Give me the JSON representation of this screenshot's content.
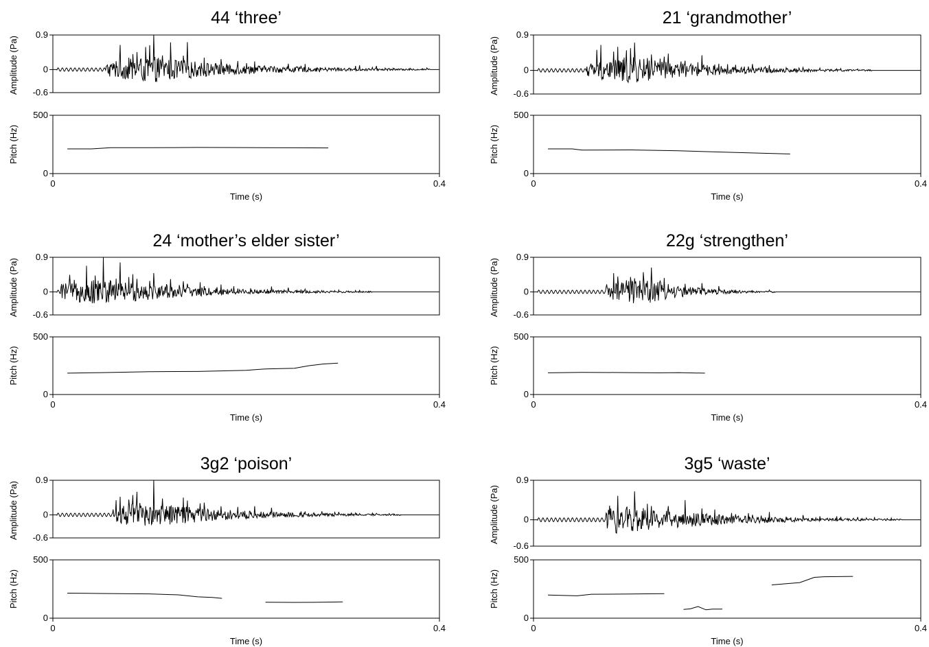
{
  "chart_data": [
    {
      "type": "line",
      "title": "44 ‘three’",
      "xlabel": "Time (s)",
      "xlim": [
        0,
        0.4
      ],
      "xticks": [
        "0",
        "0.4"
      ],
      "waveform": {
        "ylabel": "Amplitude (Pa)",
        "ylim": [
          -0.6,
          0.9
        ],
        "yticks": [
          "0.9",
          "0",
          "-0.6"
        ],
        "onset_s": 0.055,
        "peak_s": 0.1,
        "end_s": 0.39,
        "max_pa": 0.9,
        "min_pa": -0.6
      },
      "pitch": {
        "ylabel": "Pitch (Hz)",
        "ylim": [
          0,
          500
        ],
        "yticks": [
          "500",
          "0"
        ],
        "segments": [
          {
            "x": [
              0.015,
              0.04,
              0.06,
              0.1,
              0.15,
              0.2,
              0.25,
              0.285
            ],
            "y": [
              212,
              212,
              222,
              222,
              224,
              223,
              221,
              220
            ]
          }
        ]
      }
    },
    {
      "type": "line",
      "title": "21 ‘grandmother’",
      "xlabel": "Time (s)",
      "xlim": [
        0,
        0.4
      ],
      "xticks": [
        "0",
        "0.4"
      ],
      "waveform": {
        "ylabel": "Amplitude (Pa)",
        "ylim": [
          -0.6,
          0.9
        ],
        "yticks": [
          "0.9",
          "0",
          "-0.6"
        ],
        "onset_s": 0.055,
        "peak_s": 0.1,
        "end_s": 0.35,
        "max_pa": 0.9,
        "min_pa": -0.6
      },
      "pitch": {
        "ylabel": "Pitch (Hz)",
        "ylim": [
          0,
          500
        ],
        "yticks": [
          "500",
          "0"
        ],
        "segments": [
          {
            "x": [
              0.015,
              0.04,
              0.05,
              0.1,
              0.15,
              0.2,
              0.265
            ],
            "y": [
              212,
              212,
              202,
              203,
              195,
              183,
              168
            ]
          }
        ]
      }
    },
    {
      "type": "line",
      "title": "24 ‘mother’s elder sister’",
      "xlabel": "Time (s)",
      "xlim": [
        0,
        0.4
      ],
      "xticks": [
        "0",
        "0.4"
      ],
      "waveform": {
        "ylabel": "Amplitude (Pa)",
        "ylim": [
          -0.6,
          0.9
        ],
        "yticks": [
          "0.9",
          "0",
          "-0.6"
        ],
        "onset_s": 0.008,
        "peak_s": 0.05,
        "end_s": 0.33,
        "max_pa": 0.9,
        "min_pa": -0.6
      },
      "pitch": {
        "ylabel": "Pitch (Hz)",
        "ylim": [
          0,
          500
        ],
        "yticks": [
          "500",
          "0"
        ],
        "segments": [
          {
            "x": [
              0.015,
              0.05,
              0.1,
              0.15,
              0.2,
              0.22,
              0.25,
              0.265,
              0.28,
              0.295
            ],
            "y": [
              185,
              190,
              198,
              200,
              210,
              222,
              228,
              250,
              265,
              272
            ]
          }
        ]
      }
    },
    {
      "type": "line",
      "title": "22g ‘strengthen’",
      "xlabel": "Time (s)",
      "xlim": [
        0,
        0.4
      ],
      "xticks": [
        "0",
        "0.4"
      ],
      "waveform": {
        "ylabel": "Amplitude (Pa)",
        "ylim": [
          -0.6,
          0.9
        ],
        "yticks": [
          "0.9",
          "0",
          "-0.6"
        ],
        "onset_s": 0.075,
        "peak_s": 0.115,
        "end_s": 0.25,
        "max_pa": 0.9,
        "min_pa": -0.6
      },
      "pitch": {
        "ylabel": "Pitch (Hz)",
        "ylim": [
          0,
          500
        ],
        "yticks": [
          "500",
          "0"
        ],
        "segments": [
          {
            "x": [
              0.015,
              0.05,
              0.1,
              0.13,
              0.15,
              0.177
            ],
            "y": [
              188,
              192,
              190,
              188,
              190,
              185
            ]
          }
        ]
      }
    },
    {
      "type": "line",
      "title": "3g2 ‘poison’",
      "xlabel": "Time (s)",
      "xlim": [
        0,
        0.4
      ],
      "xticks": [
        "0",
        "0.4"
      ],
      "waveform": {
        "ylabel": "Amplitude (Pa)",
        "ylim": [
          -0.6,
          0.9
        ],
        "yticks": [
          "0.9",
          "0",
          "-0.6"
        ],
        "onset_s": 0.062,
        "peak_s": 0.095,
        "end_s": 0.36,
        "max_pa": 0.9,
        "min_pa": -0.6
      },
      "pitch": {
        "ylabel": "Pitch (Hz)",
        "ylim": [
          0,
          500
        ],
        "yticks": [
          "500",
          "0"
        ],
        "segments": [
          {
            "x": [
              0.015,
              0.05,
              0.1,
              0.13,
              0.15,
              0.165,
              0.175
            ],
            "y": [
              215,
              212,
              208,
              200,
              183,
              178,
              170
            ]
          },
          {
            "x": [
              0.22,
              0.25,
              0.27,
              0.3
            ],
            "y": [
              137,
              135,
              136,
              140
            ]
          }
        ]
      }
    },
    {
      "type": "line",
      "title": "3g5 ‘waste’",
      "xlabel": "Time (s)",
      "xlim": [
        0,
        0.4
      ],
      "xticks": [
        "0",
        "0.4"
      ],
      "waveform": {
        "ylabel": "Amplitude (Pa)",
        "ylim": [
          -0.6,
          0.9
        ],
        "yticks": [
          "0.9",
          "0",
          "-0.6"
        ],
        "onset_s": 0.075,
        "peak_s": 0.085,
        "end_s": 0.38,
        "max_pa": 0.9,
        "min_pa": -0.6
      },
      "pitch": {
        "ylabel": "Pitch (Hz)",
        "ylim": [
          0,
          500
        ],
        "yticks": [
          "500",
          "0"
        ],
        "segments": [
          {
            "x": [
              0.015,
              0.045,
              0.06,
              0.1,
              0.135
            ],
            "y": [
              198,
              192,
              205,
              207,
              210
            ]
          },
          {
            "x": [
              0.155,
              0.162,
              0.17,
              0.178,
              0.185,
              0.195
            ],
            "y": [
              75,
              80,
              100,
              72,
              78,
              78
            ]
          },
          {
            "x": [
              0.246,
              0.26,
              0.275,
              0.29,
              0.3,
              0.33
            ],
            "y": [
              285,
              295,
              305,
              350,
              355,
              358
            ]
          }
        ]
      }
    }
  ]
}
